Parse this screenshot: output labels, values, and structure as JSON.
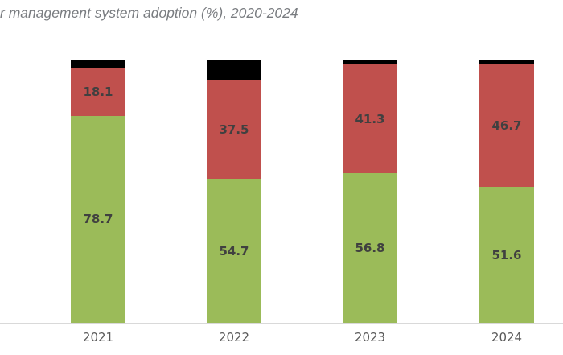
{
  "page": {
    "background_color": "#ffffff"
  },
  "chart_data": {
    "type": "bar",
    "stacked": true,
    "title": "r management system adoption (%), 2020-2024",
    "title_color": "#797c80",
    "categories": [
      "2021",
      "2022",
      "2023",
      "2024"
    ],
    "series": [
      {
        "name": "green-segment",
        "color": "#9bbb59",
        "values": [
          78.7,
          54.7,
          56.8,
          51.6
        ],
        "labels_visible": true
      },
      {
        "name": "red-segment",
        "color": "#c0504d",
        "values": [
          18.1,
          37.5,
          41.3,
          46.7
        ],
        "labels_visible": true
      },
      {
        "name": "black-segment",
        "color": "#000000",
        "values": [
          3.2,
          7.8,
          1.9,
          1.7
        ],
        "labels_visible": false
      }
    ],
    "ylim": [
      0,
      100
    ],
    "gridlines": false,
    "legend_position": "none",
    "x_axis_line_color": "#d9d9d9",
    "value_label_color": "#404040",
    "axis_label_color": "#595959"
  }
}
